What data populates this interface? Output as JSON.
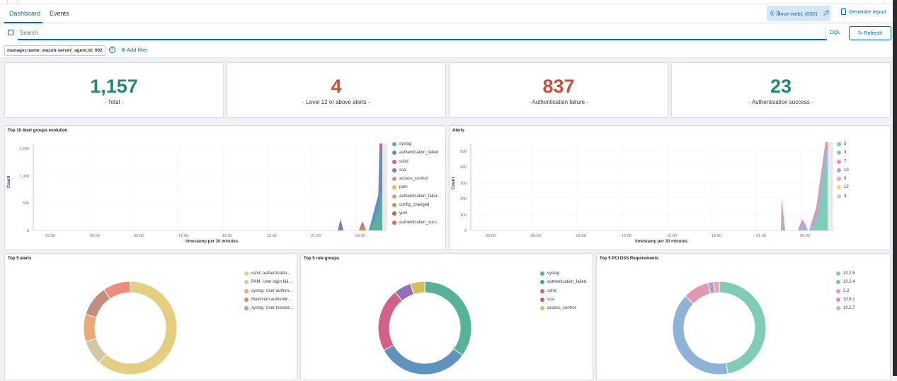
{
  "header": {
    "tabs": [
      "Dashboard",
      "Events"
    ],
    "agent_label": "linux-web1 (002)",
    "report_label": "Generate report"
  },
  "search": {
    "placeholder": "Search",
    "dql_label": "DQL",
    "refresh_label": "Refresh"
  },
  "filters": {
    "pills": [
      "manager.name: wazuh-server",
      "agent.id: 002"
    ],
    "add_label": "Add filter"
  },
  "stats": [
    {
      "value": "1,157",
      "label": "- Total -",
      "color": "#1f8a76"
    },
    {
      "value": "4",
      "label": "- Level 12 or above alerts -",
      "color": "#c5513a"
    },
    {
      "value": "837",
      "label": "- Authentication failure -",
      "color": "#c5513a"
    },
    {
      "value": "23",
      "label": "- Authentication success -",
      "color": "#1f8a76"
    }
  ],
  "alert_groups_chart": {
    "title": "Top 10 Alert groups evolution",
    "ylabel": "Count",
    "xlabel": "timestamp per 30 minutes",
    "yticks": [
      "1,500",
      "1,000",
      "500",
      "0"
    ],
    "xticks": [
      "03:00",
      "06:00",
      "09:00",
      "12:00",
      "15:00",
      "18:00",
      "21:00",
      "00:00"
    ],
    "legend": [
      {
        "name": "syslog",
        "color": "#54b399"
      },
      {
        "name": "authentication_failed",
        "color": "#6092c0"
      },
      {
        "name": "sshd",
        "color": "#d36086"
      },
      {
        "name": "sca",
        "color": "#9170b8"
      },
      {
        "name": "access_control",
        "color": "#ca8eae"
      },
      {
        "name": "pam",
        "color": "#d6bf57"
      },
      {
        "name": "authentication_failur...",
        "color": "#b9a888"
      },
      {
        "name": "config_changed",
        "color": "#da8b45"
      },
      {
        "name": "yum",
        "color": "#aa6556"
      },
      {
        "name": "authentication_succ...",
        "color": "#e7664c"
      }
    ]
  },
  "alerts_chart": {
    "title": "Alerts",
    "ylabel": "Count",
    "xlabel": "timestamp per 30 minutes",
    "yticks": [
      "500",
      "400",
      "300",
      "200",
      "100",
      "0"
    ],
    "xticks": [
      "03:00",
      "06:00",
      "09:00",
      "12:00",
      "15:00",
      "18:00",
      "21:00",
      "00:00"
    ],
    "legend": [
      {
        "name": "5",
        "color": "#7dcdb7"
      },
      {
        "name": "3",
        "color": "#9ab8dc"
      },
      {
        "name": "7",
        "color": "#e594a9"
      },
      {
        "name": "10",
        "color": "#b69ed3"
      },
      {
        "name": "8",
        "color": "#e4a9c4"
      },
      {
        "name": "12",
        "color": "#e6d87e"
      },
      {
        "name": "4",
        "color": "#d8cdb5"
      }
    ]
  },
  "donuts": [
    {
      "title": "Top 5 alerts",
      "slices": [
        {
          "name": "sshd: authenticatio...",
          "value": 58,
          "color": "#e4ce80"
        },
        {
          "name": "PAM: User login fail...",
          "value": 8,
          "color": "#d6c6a6"
        },
        {
          "name": "syslog: User authen...",
          "value": 9,
          "color": "#e8a974"
        },
        {
          "name": "Maximum authentic...",
          "value": 10,
          "color": "#c48e7f"
        },
        {
          "name": "syslog: User missed...",
          "value": 9,
          "color": "#ee8e79"
        }
      ]
    },
    {
      "title": "Top 5 rule groups",
      "slices": [
        {
          "name": "syslog",
          "value": 35,
          "color": "#54b399"
        },
        {
          "name": "authentication_failed",
          "value": 32,
          "color": "#6092c0"
        },
        {
          "name": "sshd",
          "value": 22,
          "color": "#d36086"
        },
        {
          "name": "sca",
          "value": 6,
          "color": "#9170b8"
        },
        {
          "name": "access_control",
          "value": 5,
          "color": "#d6bf57"
        }
      ]
    },
    {
      "title": "Top 5 PCI DSS Requirements",
      "slices": [
        {
          "name": "10.2.5",
          "value": 47,
          "color": "#80cdb6"
        },
        {
          "name": "10.2.4",
          "value": 40,
          "color": "#8fb2d8"
        },
        {
          "name": "2.2",
          "value": 9,
          "color": "#e397b1"
        },
        {
          "name": "10.6.1",
          "value": 2,
          "color": "#b49bd6"
        },
        {
          "name": "10.2.7",
          "value": 2,
          "color": "#e5a3bf"
        }
      ]
    }
  ]
}
